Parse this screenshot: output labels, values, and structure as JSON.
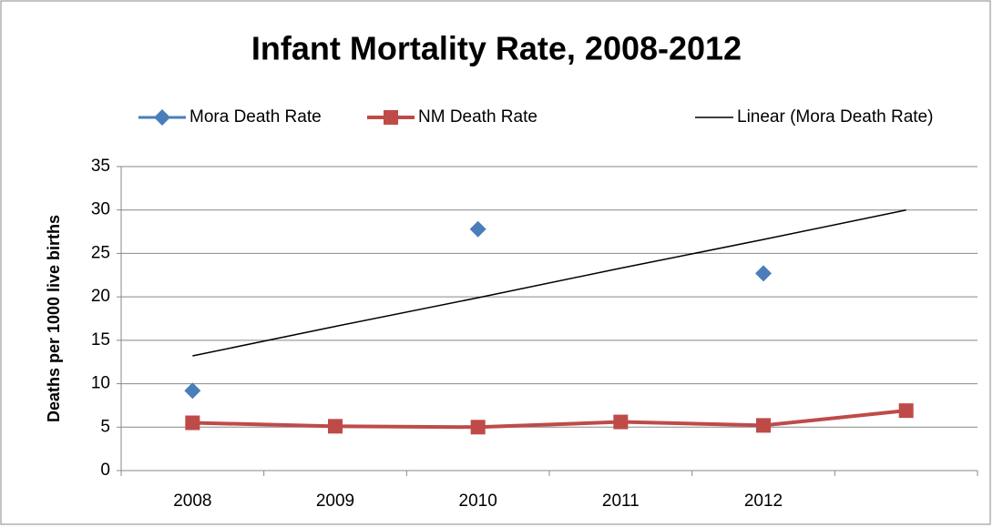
{
  "chart_data": {
    "type": "line",
    "title": "Infant Mortality Rate, 2008-2012",
    "y_label": "Deaths per 1000 live births",
    "categories": [
      "2008",
      "2009",
      "2010",
      "2011",
      "2012",
      null
    ],
    "series": [
      {
        "name": "Mora Death Rate",
        "color": "#4a7ebb",
        "marker": "diamond",
        "line_width": 3,
        "values": [
          9.2,
          null,
          27.8,
          null,
          22.7,
          null
        ]
      },
      {
        "name": "NM Death Rate",
        "color": "#be4b48",
        "marker": "square",
        "line_width": 4,
        "values": [
          5.5,
          5.1,
          5.0,
          5.6,
          5.2,
          6.9
        ]
      },
      {
        "name": "Linear (Mora Death Rate)",
        "color": "#000000",
        "marker": "none",
        "line_width": 1.5,
        "values": [
          13.2,
          16.6,
          19.9,
          23.3,
          26.6,
          30.0
        ]
      }
    ],
    "ylim": [
      0,
      35
    ],
    "yticks": [
      0,
      5,
      10,
      15,
      20,
      25,
      30,
      35
    ],
    "grid": true,
    "legend": "top"
  }
}
